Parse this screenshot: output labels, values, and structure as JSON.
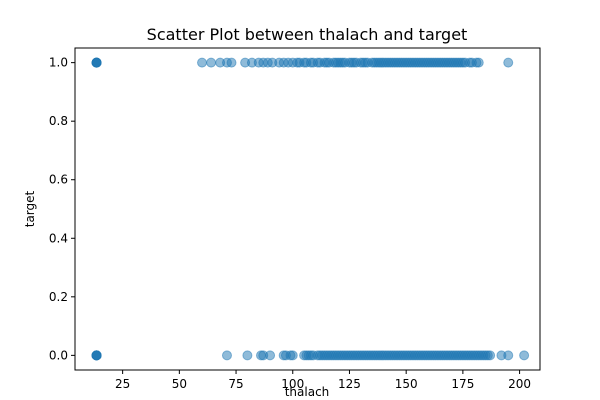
{
  "chart_data": {
    "type": "scatter",
    "title": "Scatter Plot between thalach and target",
    "xlabel": "thalach",
    "ylabel": "target",
    "xlim": [
      4,
      209
    ],
    "ylim": [
      -0.05,
      1.05
    ],
    "xticks": [
      25,
      50,
      75,
      100,
      125,
      150,
      175,
      200
    ],
    "yticks": [
      0.0,
      0.2,
      0.4,
      0.6,
      0.8,
      1.0
    ],
    "ytick_labels": [
      "0.0",
      "0.2",
      "0.4",
      "0.6",
      "0.8",
      "1.0"
    ],
    "grid": false,
    "marker_color": "#1f77b4",
    "marker_alpha": 0.5,
    "series": [
      {
        "points": [
          [
            13.5,
            1
          ],
          [
            13.5,
            1
          ],
          [
            13.5,
            1
          ],
          [
            13.5,
            1
          ],
          [
            13.5,
            1
          ],
          [
            13.5,
            1
          ],
          [
            60,
            1
          ],
          [
            64,
            1
          ],
          [
            68,
            1
          ],
          [
            71,
            1
          ],
          [
            73,
            1
          ],
          [
            79,
            1
          ],
          [
            82,
            1
          ],
          [
            85,
            1
          ],
          [
            87,
            1
          ],
          [
            89,
            1
          ],
          [
            91,
            1
          ],
          [
            94,
            1
          ],
          [
            96,
            1
          ],
          [
            98,
            1
          ],
          [
            100,
            1
          ],
          [
            102,
            1
          ],
          [
            103,
            1
          ],
          [
            105,
            1
          ],
          [
            106,
            1
          ],
          [
            108,
            1
          ],
          [
            109,
            1
          ],
          [
            111,
            1
          ],
          [
            112,
            1
          ],
          [
            114,
            1
          ],
          [
            115,
            1
          ],
          [
            116,
            1
          ],
          [
            118,
            1
          ],
          [
            119,
            1
          ],
          [
            120,
            1
          ],
          [
            121,
            1
          ],
          [
            122,
            1
          ],
          [
            123,
            1
          ],
          [
            125,
            1
          ],
          [
            126,
            1
          ],
          [
            127,
            1
          ],
          [
            128,
            1
          ],
          [
            130,
            1
          ],
          [
            131,
            1
          ],
          [
            132,
            1
          ],
          [
            133,
            1
          ],
          [
            135,
            1
          ],
          [
            136,
            1
          ],
          [
            137,
            1
          ],
          [
            138,
            1
          ],
          [
            139,
            1
          ],
          [
            140,
            1
          ],
          [
            141,
            1
          ],
          [
            142,
            1
          ],
          [
            143,
            1
          ],
          [
            144,
            1
          ],
          [
            145,
            1
          ],
          [
            146,
            1
          ],
          [
            147,
            1
          ],
          [
            148,
            1
          ],
          [
            149,
            1
          ],
          [
            150,
            1
          ],
          [
            151,
            1
          ],
          [
            152,
            1
          ],
          [
            153,
            1
          ],
          [
            154,
            1
          ],
          [
            155,
            1
          ],
          [
            156,
            1
          ],
          [
            157,
            1
          ],
          [
            158,
            1
          ],
          [
            159,
            1
          ],
          [
            160,
            1
          ],
          [
            161,
            1
          ],
          [
            162,
            1
          ],
          [
            163,
            1
          ],
          [
            164,
            1
          ],
          [
            165,
            1
          ],
          [
            166,
            1
          ],
          [
            167,
            1
          ],
          [
            168,
            1
          ],
          [
            169,
            1
          ],
          [
            170,
            1
          ],
          [
            171,
            1
          ],
          [
            172,
            1
          ],
          [
            173,
            1
          ],
          [
            174,
            1
          ],
          [
            175,
            1
          ],
          [
            176,
            1
          ],
          [
            178,
            1
          ],
          [
            179,
            1
          ],
          [
            181,
            1
          ],
          [
            182,
            1
          ],
          [
            195,
            1
          ],
          [
            13.5,
            0
          ],
          [
            13.5,
            0
          ],
          [
            13.5,
            0
          ],
          [
            13.5,
            0
          ],
          [
            13.5,
            0
          ],
          [
            13.5,
            0
          ],
          [
            71,
            0
          ],
          [
            80,
            0
          ],
          [
            86,
            0
          ],
          [
            87,
            0
          ],
          [
            90,
            0
          ],
          [
            96,
            0
          ],
          [
            97,
            0
          ],
          [
            99,
            0
          ],
          [
            100,
            0
          ],
          [
            105,
            0
          ],
          [
            106,
            0
          ],
          [
            107,
            0
          ],
          [
            108,
            0
          ],
          [
            109,
            0
          ],
          [
            111,
            0
          ],
          [
            112,
            0
          ],
          [
            113,
            0
          ],
          [
            114,
            0
          ],
          [
            115,
            0
          ],
          [
            116,
            0
          ],
          [
            117,
            0
          ],
          [
            118,
            0
          ],
          [
            119,
            0
          ],
          [
            120,
            0
          ],
          [
            121,
            0
          ],
          [
            122,
            0
          ],
          [
            123,
            0
          ],
          [
            124,
            0
          ],
          [
            125,
            0
          ],
          [
            126,
            0
          ],
          [
            127,
            0
          ],
          [
            128,
            0
          ],
          [
            129,
            0
          ],
          [
            130,
            0
          ],
          [
            131,
            0
          ],
          [
            132,
            0
          ],
          [
            133,
            0
          ],
          [
            134,
            0
          ],
          [
            135,
            0
          ],
          [
            136,
            0
          ],
          [
            137,
            0
          ],
          [
            138,
            0
          ],
          [
            139,
            0
          ],
          [
            140,
            0
          ],
          [
            141,
            0
          ],
          [
            142,
            0
          ],
          [
            143,
            0
          ],
          [
            144,
            0
          ],
          [
            145,
            0
          ],
          [
            146,
            0
          ],
          [
            147,
            0
          ],
          [
            148,
            0
          ],
          [
            149,
            0
          ],
          [
            150,
            0
          ],
          [
            151,
            0
          ],
          [
            152,
            0
          ],
          [
            153,
            0
          ],
          [
            154,
            0
          ],
          [
            155,
            0
          ],
          [
            156,
            0
          ],
          [
            157,
            0
          ],
          [
            158,
            0
          ],
          [
            159,
            0
          ],
          [
            160,
            0
          ],
          [
            161,
            0
          ],
          [
            162,
            0
          ],
          [
            163,
            0
          ],
          [
            164,
            0
          ],
          [
            165,
            0
          ],
          [
            166,
            0
          ],
          [
            167,
            0
          ],
          [
            168,
            0
          ],
          [
            169,
            0
          ],
          [
            170,
            0
          ],
          [
            171,
            0
          ],
          [
            172,
            0
          ],
          [
            173,
            0
          ],
          [
            174,
            0
          ],
          [
            175,
            0
          ],
          [
            176,
            0
          ],
          [
            177,
            0
          ],
          [
            178,
            0
          ],
          [
            179,
            0
          ],
          [
            180,
            0
          ],
          [
            181,
            0
          ],
          [
            182,
            0
          ],
          [
            183,
            0
          ],
          [
            184,
            0
          ],
          [
            185,
            0
          ],
          [
            186,
            0
          ],
          [
            187,
            0
          ],
          [
            192,
            0
          ],
          [
            195,
            0
          ],
          [
            202,
            0
          ]
        ]
      }
    ]
  }
}
